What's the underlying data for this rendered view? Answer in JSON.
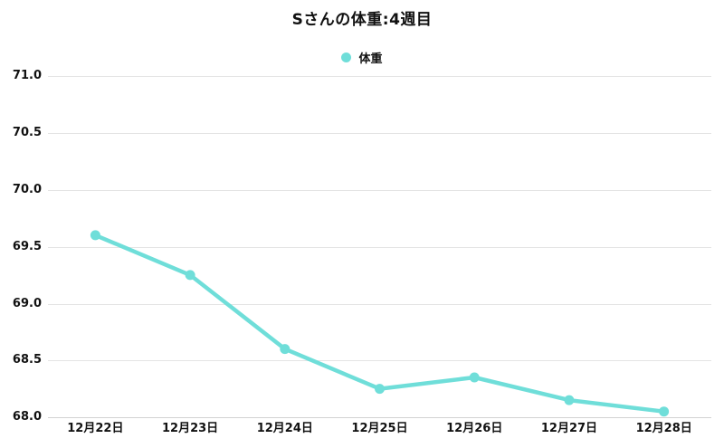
{
  "title": "Sさんの体重:4週目",
  "legend": {
    "position": "top",
    "items": [
      {
        "label": "体重",
        "color": "#6fded9",
        "marker": "circle-icon"
      }
    ]
  },
  "chart_data": {
    "type": "line",
    "title": "Sさんの体重:4週目",
    "categories": [
      "12月22日",
      "12月23日",
      "12月24日",
      "12月25日",
      "12月26日",
      "12月27日",
      "12月28日"
    ],
    "series": [
      {
        "name": "体重",
        "color": "#6fded9",
        "values": [
          69.6,
          69.25,
          68.6,
          68.25,
          68.35,
          68.15,
          68.05
        ],
        "point_radius": 5.5,
        "line_width": 4.5
      }
    ],
    "xlabel": "",
    "ylabel": "",
    "ylim": [
      68.0,
      71.0
    ],
    "y_tick_step": 0.5,
    "y_ticks": [
      "68.0",
      "68.5",
      "69.0",
      "69.5",
      "70.0",
      "70.5",
      "71.0"
    ],
    "grid": "horizontal-only",
    "legend_position": "top",
    "colors": {
      "background": "#ffffff",
      "text": "#111111",
      "gridline": "#e4e4e4",
      "bottom_axis": "#d2d2d2",
      "series": "#6fded9"
    }
  }
}
